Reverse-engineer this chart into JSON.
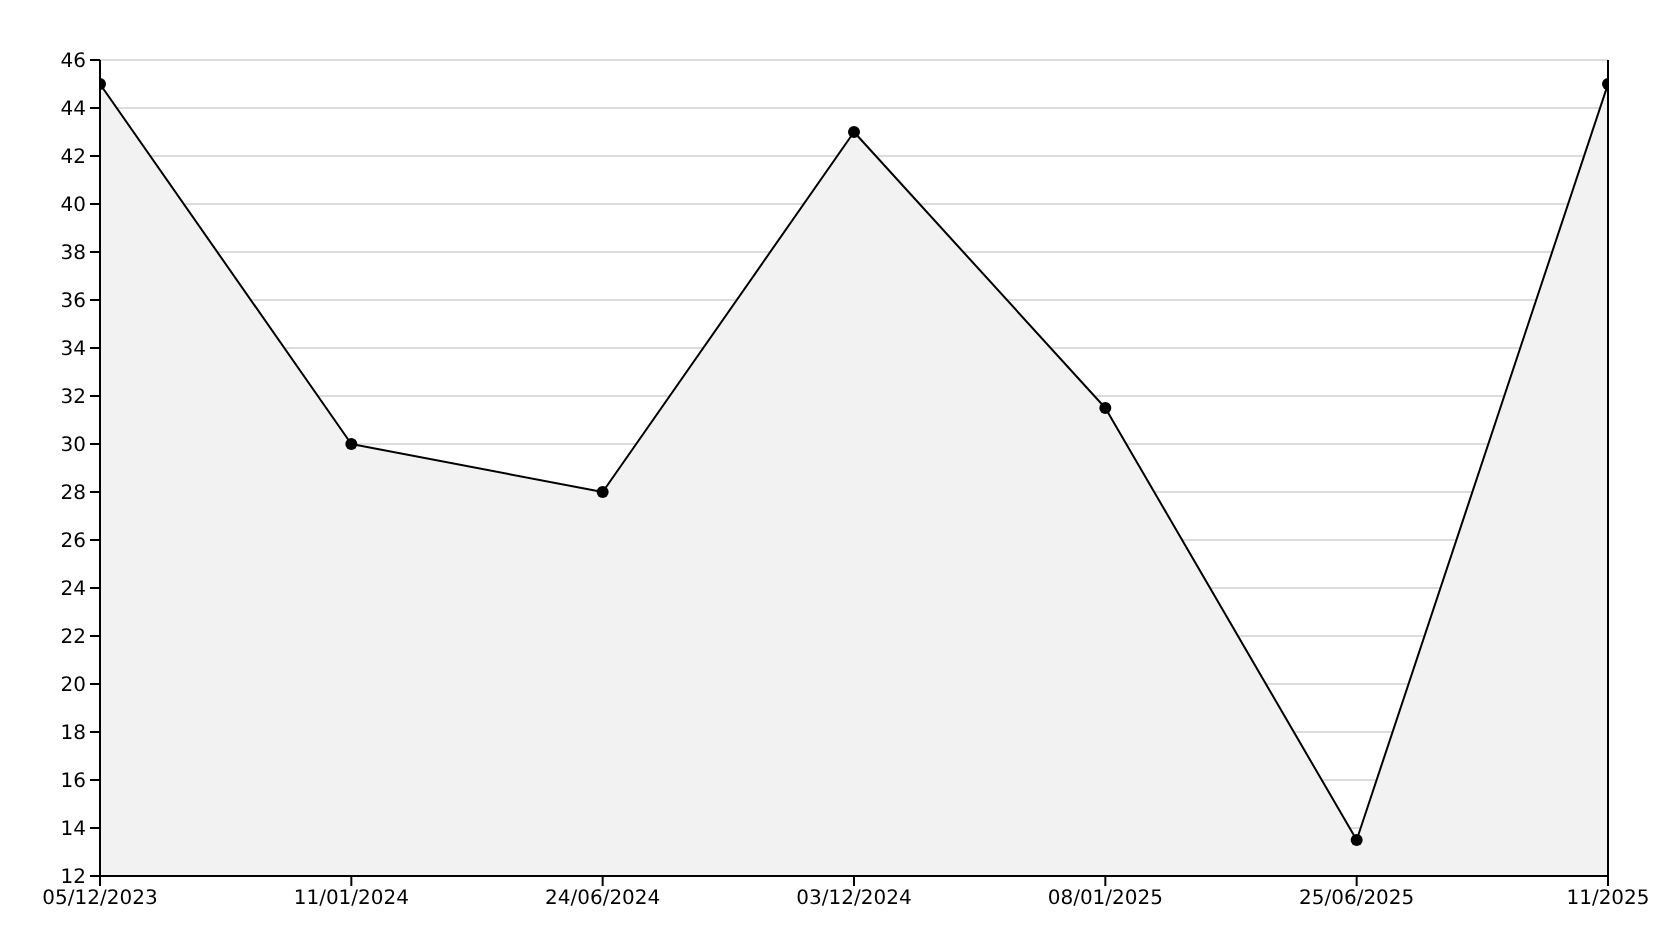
{
  "chart_data": {
    "type": "area",
    "categories": [
      "05/12/2023",
      "11/01/2024",
      "24/06/2024",
      "03/12/2024",
      "08/01/2025",
      "25/06/2025",
      "11/2025"
    ],
    "series": [
      {
        "color": "#000000",
        "values": [
          45,
          30,
          28,
          43,
          31.5,
          13.5,
          45
        ]
      }
    ],
    "ylim": [
      12,
      46
    ],
    "yticks": [
      12,
      14,
      16,
      18,
      20,
      22,
      24,
      26,
      28,
      30,
      32,
      34,
      36,
      38,
      40,
      42,
      44,
      46
    ],
    "grid": "y",
    "marker": "circle",
    "line_style": "solid"
  }
}
